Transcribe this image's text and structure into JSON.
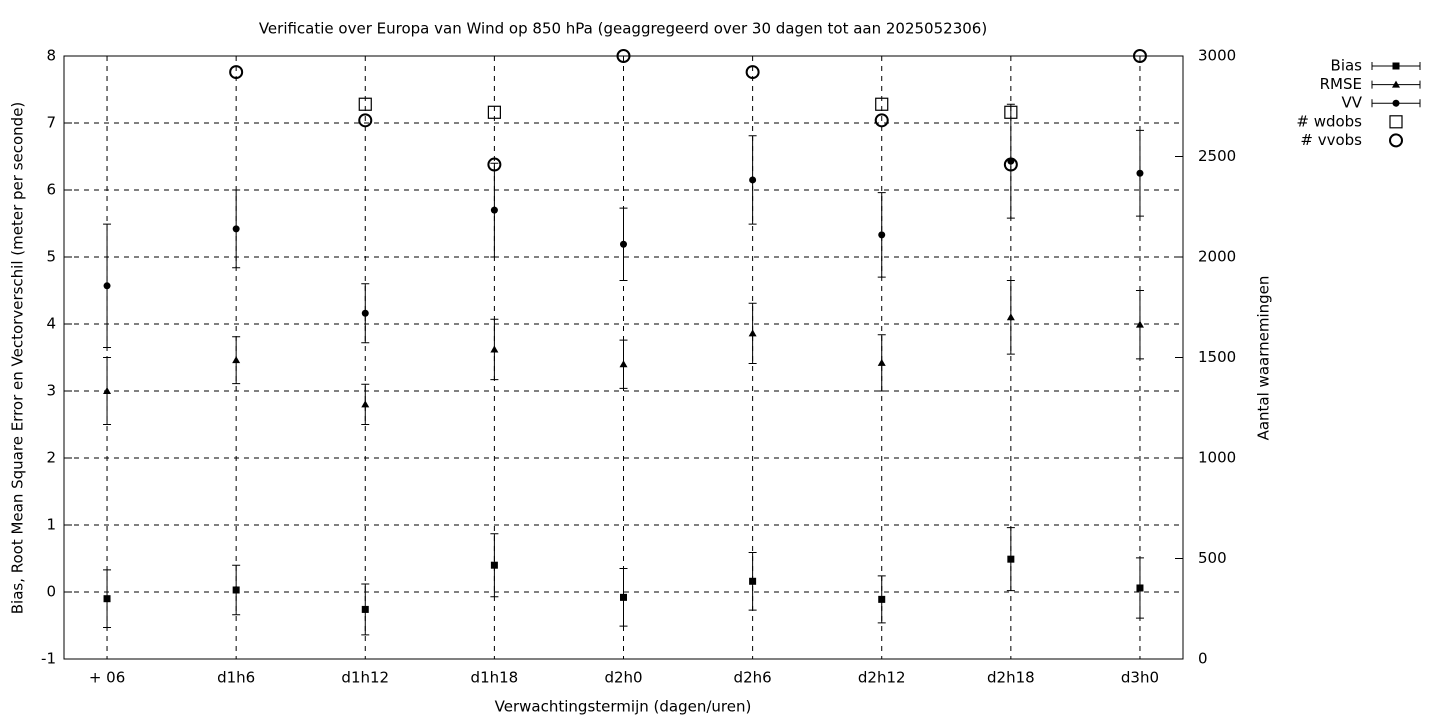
{
  "chart_data": {
    "type": "errorbar",
    "title": "Verificatie over Europa van Wind op 850 hPa (geaggregeerd over 30 dagen tot aan 2025052306)",
    "x_label": "Verwachtingstermijn (dagen/uren)",
    "y_label": "Bias, Root Mean Square Error en Vectorverschil (meter per seconde)",
    "y2_label": "Aantal waarnemingen",
    "categories": [
      "+ 06",
      "d1h6",
      "d1h12",
      "d1h18",
      "d2h0",
      "d2h6",
      "d2h12",
      "d2h18",
      "d3h0"
    ],
    "ylim": [
      -1,
      8
    ],
    "yticks": [
      -1,
      0,
      1,
      2,
      3,
      4,
      5,
      6,
      7,
      8
    ],
    "y2lim": [
      0,
      3000
    ],
    "y2ticks": [
      0,
      500,
      1000,
      1500,
      2000,
      2500,
      3000
    ],
    "grid": true,
    "legend": "outside-top-right",
    "series": [
      {
        "name": "Bias",
        "color": "#000000",
        "marker": "square",
        "values": [
          -0.1,
          0.03,
          -0.26,
          0.4,
          -0.08,
          0.16,
          -0.11,
          0.49,
          0.06
        ],
        "errors": [
          0.43,
          0.37,
          0.38,
          0.47,
          0.43,
          0.43,
          0.35,
          0.47,
          0.45
        ]
      },
      {
        "name": "RMSE",
        "color": "#000000",
        "marker": "triangle",
        "values": [
          3.0,
          3.46,
          2.8,
          3.62,
          3.4,
          3.86,
          3.42,
          4.1,
          3.99
        ],
        "errors": [
          0.5,
          0.35,
          0.3,
          0.45,
          0.36,
          0.45,
          0.42,
          0.55,
          0.51
        ]
      },
      {
        "name": "VV",
        "color": "#000000",
        "marker": "circle",
        "values": [
          4.57,
          5.42,
          4.16,
          5.7,
          5.19,
          6.15,
          5.33,
          6.43,
          6.25
        ],
        "errors": [
          0.92,
          0.58,
          0.44,
          0.7,
          0.54,
          0.66,
          0.63,
          0.85,
          0.64
        ]
      },
      {
        "name": "# wdobs",
        "color": "#000000",
        "marker": "open-square",
        "axis": "y2",
        "values": [
          null,
          null,
          2760,
          2720,
          null,
          null,
          2760,
          2720,
          null
        ]
      },
      {
        "name": "# vvobs",
        "color": "#000000",
        "marker": "open-circle",
        "axis": "y2",
        "values": [
          null,
          2920,
          2680,
          2460,
          3000,
          2920,
          2680,
          2460,
          3000
        ]
      }
    ]
  }
}
